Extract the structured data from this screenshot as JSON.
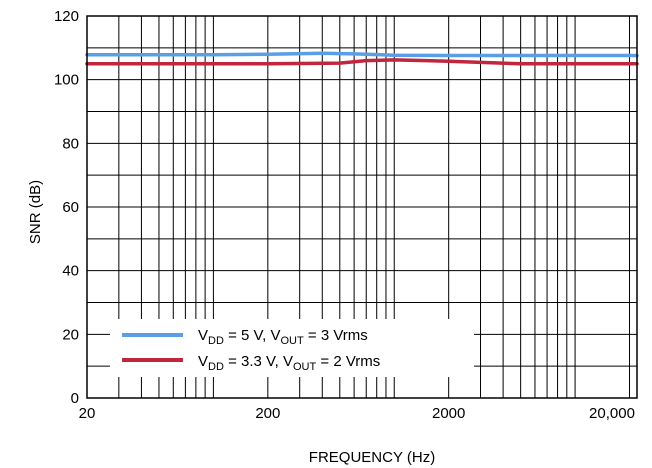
{
  "chart_data": {
    "type": "line",
    "title": "",
    "xlabel": "FREQUENCY (Hz)",
    "ylabel": "SNR (dB)",
    "x_scale": "log",
    "xlim": [
      20,
      22000
    ],
    "ylim": [
      0,
      120
    ],
    "x_ticks": [
      20,
      200,
      2000,
      20000
    ],
    "x_tick_labels": [
      "20",
      "200",
      "2000",
      "20,000"
    ],
    "y_ticks": [
      0,
      20,
      40,
      60,
      80,
      100,
      120
    ],
    "y_tick_labels": [
      "0",
      "20",
      "40",
      "60",
      "80",
      "100",
      "120"
    ],
    "grid": true,
    "legend_position": "bottom-left",
    "series": [
      {
        "legend": {
          "v": "V",
          "v_sub": "DD",
          "eq": " = 5 V, V",
          "out_sub": "OUT",
          "tail": " = 3 Vrms"
        },
        "color": "#5a9fe6",
        "x": [
          20,
          50,
          100,
          200,
          400,
          600,
          1000,
          2000,
          5000,
          10000,
          22000
        ],
        "y": [
          107.8,
          107.8,
          107.8,
          108.0,
          108.3,
          108.1,
          107.7,
          107.6,
          107.6,
          107.6,
          107.6
        ]
      },
      {
        "legend": {
          "v": "V",
          "v_sub": "DD",
          "eq": " = 3.3 V, V",
          "out_sub": "OUT",
          "tail": " = 2 Vrms"
        },
        "color": "#c0263e",
        "x": [
          20,
          50,
          100,
          200,
          500,
          700,
          1000,
          1500,
          2000,
          5000,
          10000,
          22000
        ],
        "y": [
          105.0,
          105.0,
          105.0,
          105.0,
          105.2,
          106.0,
          106.2,
          106.0,
          105.8,
          105.0,
          105.0,
          105.0
        ]
      }
    ]
  }
}
